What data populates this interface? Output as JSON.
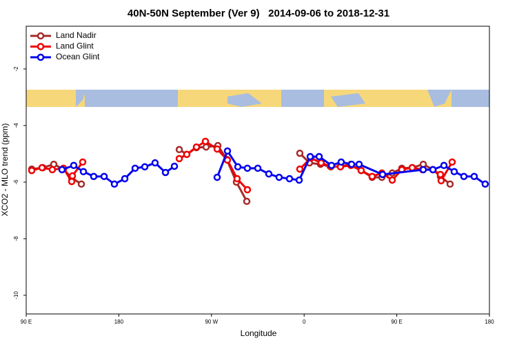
{
  "chart_data": {
    "type": "line",
    "title": "40N-50N September (Ver 9)   2014-09-06 to 2018-12-31",
    "x_label": "Longitude",
    "y_label": "XCO2 - MLO trend (ppm)",
    "xlim": [
      90,
      540
    ],
    "ylim": [
      -10.66,
      -0.49
    ],
    "xticks": [
      {
        "value": 90,
        "label": "90 E"
      },
      180,
      {
        "value": 270,
        "label": "90 W"
      },
      {
        "value": 360,
        "label": "0"
      },
      {
        "value": 450,
        "label": "90 E"
      },
      {
        "value": 540,
        "label": "180"
      }
    ],
    "yticks": [
      -2,
      -4,
      -6,
      -8,
      -10
    ],
    "legend": "top-left",
    "series": [
      {
        "name": "Land Nadir",
        "color": "#a52a2a",
        "x": [
          95.4,
          106.1,
          116.8,
          126.2,
          134.2,
          143.6,
          190,
          238.7,
          246.0,
          255.4,
          264.8,
          276.2,
          284.9,
          294.2,
          304.3,
          330,
          355.8,
          365.2,
          375.9,
          386.0,
          395.3,
          405.4,
          415.4,
          426.1,
          435.5,
          445.6,
          454.9,
          465.0,
          475.7,
          485.1,
          492.4,
          501.8
        ],
        "values": [
          -5.54,
          -5.49,
          -5.37,
          -5.54,
          -5.85,
          -6.07,
          null,
          -4.85,
          -5.02,
          -4.78,
          -4.76,
          -4.71,
          -5.2,
          -6.0,
          -6.68,
          null,
          -4.98,
          -5.32,
          -5.37,
          -5.46,
          -5.44,
          -5.37,
          -5.59,
          -5.83,
          -5.83,
          -5.68,
          -5.51,
          -5.49,
          -5.37,
          -5.56,
          -5.8,
          -6.07
        ]
      },
      {
        "name": "Land Glint",
        "color": "#ee0000",
        "x": [
          95.4,
          105.4,
          115.4,
          126.2,
          134.2,
          134.9,
          144.9,
          190,
          238.7,
          246.0,
          255.4,
          264.1,
          275.5,
          285.5,
          294.9,
          304.9,
          330,
          355.8,
          366.5,
          376.5,
          385.3,
          395.3,
          405.4,
          415.4,
          426.1,
          435.5,
          445.6,
          454.9,
          465.0,
          475.1,
          485.1,
          492.4,
          493.1,
          503.8
        ],
        "values": [
          -5.59,
          -5.49,
          -5.56,
          -5.51,
          -5.98,
          -5.78,
          -5.29,
          null,
          -5.17,
          -5.02,
          -4.76,
          -4.56,
          -4.83,
          -5.22,
          -5.88,
          -6.27,
          null,
          -5.54,
          -5.15,
          -5.32,
          -5.44,
          -5.46,
          -5.41,
          -5.59,
          -5.8,
          -5.68,
          -5.93,
          -5.56,
          -5.49,
          -5.56,
          -5.56,
          -5.73,
          -5.95,
          -5.29
        ]
      },
      {
        "name": "Ocean Glint",
        "color": "#0000ee",
        "x": [
          124.8,
          136.2,
          145.6,
          155.6,
          165.7,
          175.7,
          185.8,
          195.8,
          205.2,
          215.2,
          225.3,
          234.0,
          255,
          275.5,
          285.5,
          295.6,
          304.9,
          315.0,
          325.7,
          335.7,
          345.8,
          355.2,
          365.9,
          374.6,
          386.6,
          396.0,
          406.1,
          413.4,
          436.2,
          475.7,
          485.1,
          495.8,
          505.8,
          515.2,
          525.2,
          535.9
        ],
        "values": [
          -5.56,
          -5.41,
          -5.63,
          -5.8,
          -5.8,
          -6.07,
          -5.88,
          -5.51,
          -5.46,
          -5.32,
          -5.66,
          -5.44,
          null,
          -5.83,
          -4.9,
          -5.46,
          -5.51,
          -5.51,
          -5.71,
          -5.83,
          -5.88,
          -5.93,
          -5.1,
          -5.1,
          -5.41,
          -5.29,
          -5.37,
          -5.37,
          -5.73,
          -5.56,
          -5.56,
          -5.41,
          -5.63,
          -5.8,
          -5.8,
          -6.07
        ]
      }
    ]
  }
}
